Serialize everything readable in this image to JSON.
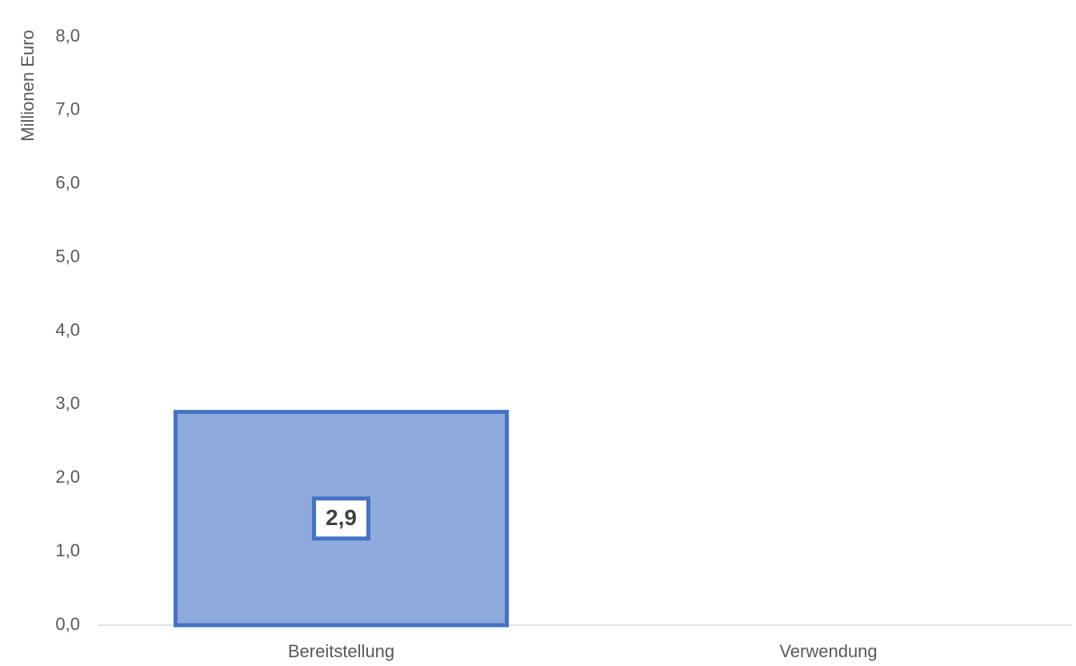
{
  "chart_data": {
    "type": "bar",
    "y_label": "Millionen Euro",
    "categories": [
      "Bereitstellung",
      "Verwendung"
    ],
    "values": [
      2.9,
      null
    ],
    "value_labels": [
      "2,9",
      null
    ],
    "color": "#8faadc",
    "edge_color": "#4472c4",
    "ylim": [
      0,
      8
    ],
    "yticks": [
      {
        "value": 0,
        "label": "0,0"
      },
      {
        "value": 1,
        "label": "1,0"
      },
      {
        "value": 2,
        "label": "2,0"
      },
      {
        "value": 3,
        "label": "3,0"
      },
      {
        "value": 4,
        "label": "4,0"
      },
      {
        "value": 5,
        "label": "5,0"
      },
      {
        "value": 6,
        "label": "6,0"
      },
      {
        "value": 7,
        "label": "7,0"
      },
      {
        "value": 8,
        "label": "8,0"
      }
    ],
    "grid": false
  }
}
